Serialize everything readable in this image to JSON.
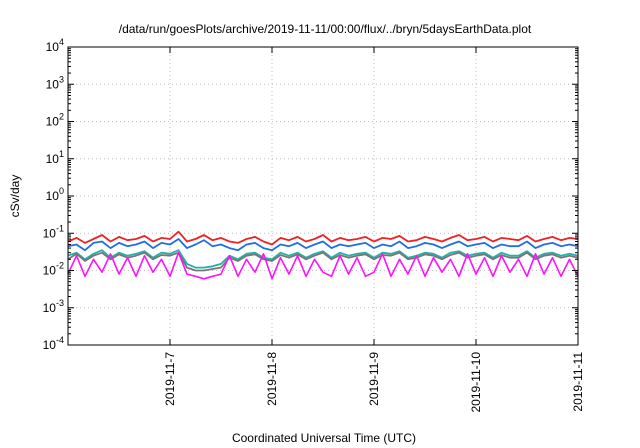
{
  "chart_data": {
    "type": "line",
    "title": "/data/run/goesPlots/archive/2019-11-11/00:00/flux/../bryn/5daysEarthData.plot",
    "xlabel": "Coordinated Universal Time (UTC)",
    "ylabel": "cSv/day",
    "yscale": "log",
    "ylim": [
      0.0001,
      10000
    ],
    "xlim": [
      "2019-11-06T00:00",
      "2019-11-11T00:00"
    ],
    "grid": true,
    "x_ticks": [
      "2019-11-7",
      "2019-11-8",
      "2019-11-9",
      "2019-11-10",
      "2019-11-11"
    ],
    "y_ticks": [
      {
        "value": 0.0001,
        "base": "10",
        "exp": "-4"
      },
      {
        "value": 0.001,
        "base": "10",
        "exp": "-3"
      },
      {
        "value": 0.01,
        "base": "10",
        "exp": "-2"
      },
      {
        "value": 0.1,
        "base": "10",
        "exp": "-1"
      },
      {
        "value": 1,
        "base": "10",
        "exp": "0"
      },
      {
        "value": 10,
        "base": "10",
        "exp": "1"
      },
      {
        "value": 100,
        "base": "10",
        "exp": "2"
      },
      {
        "value": 1000,
        "base": "10",
        "exp": "3"
      },
      {
        "value": 10000,
        "base": "10",
        "exp": "4"
      }
    ],
    "series": [
      {
        "color": "#ee2222",
        "x": [
          "2019-11-06T00:00",
          "2019-11-06T02:00",
          "2019-11-06T04:00",
          "2019-11-06T06:00",
          "2019-11-06T08:00",
          "2019-11-06T10:00",
          "2019-11-06T12:00",
          "2019-11-06T14:00",
          "2019-11-06T16:00",
          "2019-11-06T18:00",
          "2019-11-06T20:00",
          "2019-11-06T22:00",
          "2019-11-07T00:00",
          "2019-11-07T02:00",
          "2019-11-07T04:00",
          "2019-11-07T06:00",
          "2019-11-07T08:00",
          "2019-11-07T10:00",
          "2019-11-07T12:00",
          "2019-11-07T14:00",
          "2019-11-07T16:00",
          "2019-11-07T18:00",
          "2019-11-07T20:00",
          "2019-11-07T22:00",
          "2019-11-08T00:00",
          "2019-11-08T02:00",
          "2019-11-08T04:00",
          "2019-11-08T06:00",
          "2019-11-08T08:00",
          "2019-11-08T10:00",
          "2019-11-08T12:00",
          "2019-11-08T14:00",
          "2019-11-08T16:00",
          "2019-11-08T18:00",
          "2019-11-08T20:00",
          "2019-11-08T22:00",
          "2019-11-09T00:00",
          "2019-11-09T02:00",
          "2019-11-09T04:00",
          "2019-11-09T06:00",
          "2019-11-09T08:00",
          "2019-11-09T10:00",
          "2019-11-09T12:00",
          "2019-11-09T14:00",
          "2019-11-09T16:00",
          "2019-11-09T18:00",
          "2019-11-09T20:00",
          "2019-11-09T22:00",
          "2019-11-10T00:00",
          "2019-11-10T02:00",
          "2019-11-10T04:00",
          "2019-11-10T06:00",
          "2019-11-10T08:00",
          "2019-11-10T10:00",
          "2019-11-10T12:00",
          "2019-11-10T14:00",
          "2019-11-10T16:00",
          "2019-11-10T18:00",
          "2019-11-10T20:00",
          "2019-11-10T22:00",
          "2019-11-11T00:00"
        ],
        "values": [
          0.06,
          0.075,
          0.055,
          0.07,
          0.09,
          0.06,
          0.08,
          0.065,
          0.07,
          0.085,
          0.06,
          0.075,
          0.07,
          0.11,
          0.06,
          0.07,
          0.09,
          0.065,
          0.075,
          0.06,
          0.055,
          0.07,
          0.08,
          0.06,
          0.05,
          0.075,
          0.065,
          0.08,
          0.06,
          0.07,
          0.09,
          0.06,
          0.075,
          0.065,
          0.07,
          0.08,
          0.06,
          0.075,
          0.07,
          0.085,
          0.06,
          0.065,
          0.08,
          0.07,
          0.06,
          0.075,
          0.09,
          0.065,
          0.07,
          0.08,
          0.06,
          0.075,
          0.07,
          0.065,
          0.085,
          0.06,
          0.07,
          0.08,
          0.065,
          0.075,
          0.07
        ]
      },
      {
        "color": "#1e6fe0",
        "x": [
          "2019-11-06T00:00",
          "2019-11-06T02:00",
          "2019-11-06T04:00",
          "2019-11-06T06:00",
          "2019-11-06T08:00",
          "2019-11-06T10:00",
          "2019-11-06T12:00",
          "2019-11-06T14:00",
          "2019-11-06T16:00",
          "2019-11-06T18:00",
          "2019-11-06T20:00",
          "2019-11-06T22:00",
          "2019-11-07T00:00",
          "2019-11-07T02:00",
          "2019-11-07T04:00",
          "2019-11-07T06:00",
          "2019-11-07T08:00",
          "2019-11-07T10:00",
          "2019-11-07T12:00",
          "2019-11-07T14:00",
          "2019-11-07T16:00",
          "2019-11-07T18:00",
          "2019-11-07T20:00",
          "2019-11-07T22:00",
          "2019-11-08T00:00",
          "2019-11-08T02:00",
          "2019-11-08T04:00",
          "2019-11-08T06:00",
          "2019-11-08T08:00",
          "2019-11-08T10:00",
          "2019-11-08T12:00",
          "2019-11-08T14:00",
          "2019-11-08T16:00",
          "2019-11-08T18:00",
          "2019-11-08T20:00",
          "2019-11-08T22:00",
          "2019-11-09T00:00",
          "2019-11-09T02:00",
          "2019-11-09T04:00",
          "2019-11-09T06:00",
          "2019-11-09T08:00",
          "2019-11-09T10:00",
          "2019-11-09T12:00",
          "2019-11-09T14:00",
          "2019-11-09T16:00",
          "2019-11-09T18:00",
          "2019-11-09T20:00",
          "2019-11-09T22:00",
          "2019-11-10T00:00",
          "2019-11-10T02:00",
          "2019-11-10T04:00",
          "2019-11-10T06:00",
          "2019-11-10T08:00",
          "2019-11-10T10:00",
          "2019-11-10T12:00",
          "2019-11-10T14:00",
          "2019-11-10T16:00",
          "2019-11-10T18:00",
          "2019-11-10T20:00",
          "2019-11-10T22:00",
          "2019-11-11T00:00"
        ],
        "values": [
          0.045,
          0.05,
          0.035,
          0.055,
          0.06,
          0.04,
          0.055,
          0.045,
          0.05,
          0.06,
          0.04,
          0.055,
          0.05,
          0.07,
          0.04,
          0.05,
          0.065,
          0.045,
          0.05,
          0.04,
          0.035,
          0.05,
          0.055,
          0.04,
          0.035,
          0.05,
          0.045,
          0.055,
          0.04,
          0.05,
          0.06,
          0.04,
          0.05,
          0.045,
          0.05,
          0.055,
          0.04,
          0.05,
          0.045,
          0.06,
          0.04,
          0.045,
          0.055,
          0.05,
          0.04,
          0.05,
          0.06,
          0.045,
          0.05,
          0.055,
          0.04,
          0.05,
          0.045,
          0.045,
          0.06,
          0.04,
          0.05,
          0.055,
          0.045,
          0.05,
          0.045
        ]
      },
      {
        "color": "#22b0a8",
        "x": [
          "2019-11-06T00:00",
          "2019-11-06T02:00",
          "2019-11-06T04:00",
          "2019-11-06T06:00",
          "2019-11-06T08:00",
          "2019-11-06T10:00",
          "2019-11-06T12:00",
          "2019-11-06T14:00",
          "2019-11-06T16:00",
          "2019-11-06T18:00",
          "2019-11-06T20:00",
          "2019-11-06T22:00",
          "2019-11-07T00:00",
          "2019-11-07T02:00",
          "2019-11-07T04:00",
          "2019-11-07T06:00",
          "2019-11-07T08:00",
          "2019-11-07T10:00",
          "2019-11-07T12:00",
          "2019-11-07T14:00",
          "2019-11-07T16:00",
          "2019-11-07T18:00",
          "2019-11-07T20:00",
          "2019-11-07T22:00",
          "2019-11-08T00:00",
          "2019-11-08T02:00",
          "2019-11-08T04:00",
          "2019-11-08T06:00",
          "2019-11-08T08:00",
          "2019-11-08T10:00",
          "2019-11-08T12:00",
          "2019-11-08T14:00",
          "2019-11-08T16:00",
          "2019-11-08T18:00",
          "2019-11-08T20:00",
          "2019-11-08T22:00",
          "2019-11-09T00:00",
          "2019-11-09T02:00",
          "2019-11-09T04:00",
          "2019-11-09T06:00",
          "2019-11-09T08:00",
          "2019-11-09T10:00",
          "2019-11-09T12:00",
          "2019-11-09T14:00",
          "2019-11-09T16:00",
          "2019-11-09T18:00",
          "2019-11-09T20:00",
          "2019-11-09T22:00",
          "2019-11-10T00:00",
          "2019-11-10T02:00",
          "2019-11-10T04:00",
          "2019-11-10T06:00",
          "2019-11-10T08:00",
          "2019-11-10T10:00",
          "2019-11-10T12:00",
          "2019-11-10T14:00",
          "2019-11-10T16:00",
          "2019-11-10T18:00",
          "2019-11-10T20:00",
          "2019-11-10T22:00",
          "2019-11-11T00:00"
        ],
        "values": [
          0.025,
          0.03,
          0.02,
          0.028,
          0.035,
          0.022,
          0.03,
          0.025,
          0.028,
          0.033,
          0.022,
          0.03,
          0.028,
          0.035,
          0.015,
          0.012,
          0.012,
          0.013,
          0.015,
          0.025,
          0.02,
          0.028,
          0.03,
          0.022,
          0.02,
          0.03,
          0.025,
          0.03,
          0.022,
          0.028,
          0.033,
          0.022,
          0.03,
          0.025,
          0.028,
          0.03,
          0.022,
          0.03,
          0.028,
          0.033,
          0.022,
          0.025,
          0.03,
          0.028,
          0.022,
          0.03,
          0.033,
          0.025,
          0.028,
          0.03,
          0.022,
          0.03,
          0.025,
          0.025,
          0.033,
          0.022,
          0.028,
          0.03,
          0.025,
          0.028,
          0.025
        ]
      },
      {
        "color": "#777777",
        "x": [
          "2019-11-06T00:00",
          "2019-11-06T02:00",
          "2019-11-06T04:00",
          "2019-11-06T06:00",
          "2019-11-06T08:00",
          "2019-11-06T10:00",
          "2019-11-06T12:00",
          "2019-11-06T14:00",
          "2019-11-06T16:00",
          "2019-11-06T18:00",
          "2019-11-06T20:00",
          "2019-11-06T22:00",
          "2019-11-07T00:00",
          "2019-11-07T02:00",
          "2019-11-07T04:00",
          "2019-11-07T06:00",
          "2019-11-07T08:00",
          "2019-11-07T10:00",
          "2019-11-07T12:00",
          "2019-11-07T14:00",
          "2019-11-07T16:00",
          "2019-11-07T18:00",
          "2019-11-07T20:00",
          "2019-11-07T22:00",
          "2019-11-08T00:00",
          "2019-11-08T02:00",
          "2019-11-08T04:00",
          "2019-11-08T06:00",
          "2019-11-08T08:00",
          "2019-11-08T10:00",
          "2019-11-08T12:00",
          "2019-11-08T14:00",
          "2019-11-08T16:00",
          "2019-11-08T18:00",
          "2019-11-08T20:00",
          "2019-11-08T22:00",
          "2019-11-09T00:00",
          "2019-11-09T02:00",
          "2019-11-09T04:00",
          "2019-11-09T06:00",
          "2019-11-09T08:00",
          "2019-11-09T10:00",
          "2019-11-09T12:00",
          "2019-11-09T14:00",
          "2019-11-09T16:00",
          "2019-11-09T18:00",
          "2019-11-09T20:00",
          "2019-11-09T22:00",
          "2019-11-10T00:00",
          "2019-11-10T02:00",
          "2019-11-10T04:00",
          "2019-11-10T06:00",
          "2019-11-10T08:00",
          "2019-11-10T10:00",
          "2019-11-10T12:00",
          "2019-11-10T14:00",
          "2019-11-10T16:00",
          "2019-11-10T18:00",
          "2019-11-10T20:00",
          "2019-11-10T22:00",
          "2019-11-11T00:00"
        ],
        "values": [
          0.02,
          0.028,
          0.018,
          0.025,
          0.03,
          0.02,
          0.027,
          0.022,
          0.025,
          0.03,
          0.02,
          0.026,
          0.025,
          0.03,
          0.012,
          0.01,
          0.01,
          0.011,
          0.012,
          0.022,
          0.018,
          0.025,
          0.027,
          0.02,
          0.018,
          0.026,
          0.022,
          0.027,
          0.02,
          0.025,
          0.03,
          0.02,
          0.026,
          0.022,
          0.025,
          0.027,
          0.02,
          0.026,
          0.025,
          0.03,
          0.02,
          0.022,
          0.027,
          0.025,
          0.02,
          0.026,
          0.03,
          0.022,
          0.025,
          0.027,
          0.02,
          0.026,
          0.022,
          0.022,
          0.03,
          0.02,
          0.025,
          0.027,
          0.022,
          0.025,
          0.022
        ]
      },
      {
        "color": "#ff10ff",
        "x": [
          "2019-11-06T00:00",
          "2019-11-06T02:00",
          "2019-11-06T04:00",
          "2019-11-06T06:00",
          "2019-11-06T08:00",
          "2019-11-06T10:00",
          "2019-11-06T12:00",
          "2019-11-06T14:00",
          "2019-11-06T16:00",
          "2019-11-06T18:00",
          "2019-11-06T20:00",
          "2019-11-06T22:00",
          "2019-11-07T00:00",
          "2019-11-07T02:00",
          "2019-11-07T04:00",
          "2019-11-07T06:00",
          "2019-11-07T08:00",
          "2019-11-07T10:00",
          "2019-11-07T12:00",
          "2019-11-07T14:00",
          "2019-11-07T16:00",
          "2019-11-07T18:00",
          "2019-11-07T20:00",
          "2019-11-07T22:00",
          "2019-11-08T00:00",
          "2019-11-08T02:00",
          "2019-11-08T04:00",
          "2019-11-08T06:00",
          "2019-11-08T08:00",
          "2019-11-08T10:00",
          "2019-11-08T12:00",
          "2019-11-08T14:00",
          "2019-11-08T16:00",
          "2019-11-08T18:00",
          "2019-11-08T20:00",
          "2019-11-08T22:00",
          "2019-11-09T00:00",
          "2019-11-09T02:00",
          "2019-11-09T04:00",
          "2019-11-09T06:00",
          "2019-11-09T08:00",
          "2019-11-09T10:00",
          "2019-11-09T12:00",
          "2019-11-09T14:00",
          "2019-11-09T16:00",
          "2019-11-09T18:00",
          "2019-11-09T20:00",
          "2019-11-09T22:00",
          "2019-11-10T00:00",
          "2019-11-10T02:00",
          "2019-11-10T04:00",
          "2019-11-10T06:00",
          "2019-11-10T08:00",
          "2019-11-10T10:00",
          "2019-11-10T12:00",
          "2019-11-10T14:00",
          "2019-11-10T16:00",
          "2019-11-10T18:00",
          "2019-11-10T20:00",
          "2019-11-10T22:00",
          "2019-11-11T00:00"
        ],
        "values": [
          0.008,
          0.025,
          0.007,
          0.02,
          0.009,
          0.028,
          0.008,
          0.022,
          0.007,
          0.025,
          0.009,
          0.02,
          0.007,
          0.03,
          0.008,
          0.007,
          0.006,
          0.007,
          0.008,
          0.025,
          0.007,
          0.02,
          0.009,
          0.028,
          0.006,
          0.022,
          0.008,
          0.025,
          0.007,
          0.02,
          0.009,
          0.007,
          0.025,
          0.008,
          0.022,
          0.007,
          0.009,
          0.028,
          0.007,
          0.02,
          0.008,
          0.025,
          0.007,
          0.022,
          0.009,
          0.02,
          0.007,
          0.028,
          0.008,
          0.022,
          0.007,
          0.025,
          0.009,
          0.02,
          0.007,
          0.028,
          0.008,
          0.022,
          0.007,
          0.02,
          0.007
        ]
      }
    ]
  }
}
